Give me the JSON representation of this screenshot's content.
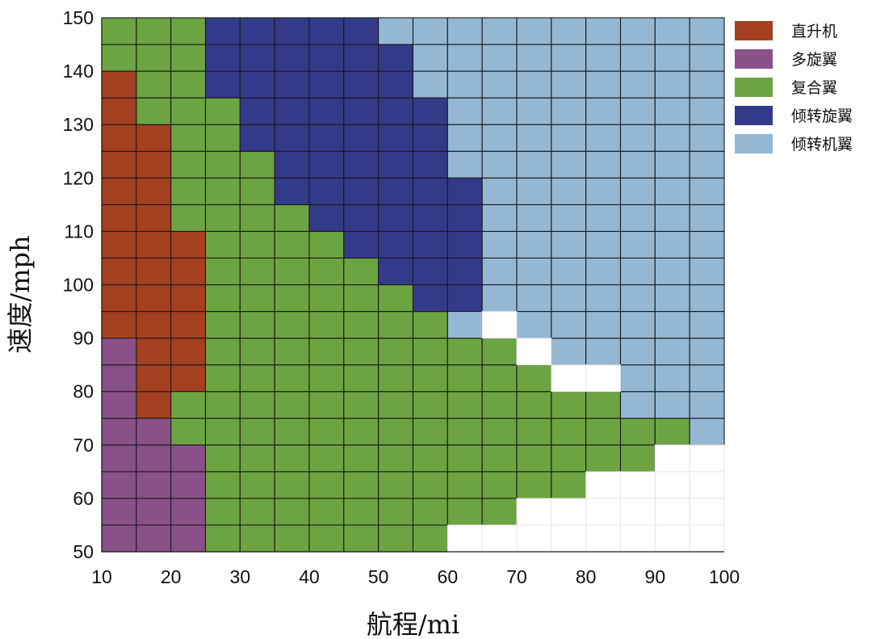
{
  "chart_data": {
    "type": "heatmap",
    "title": "",
    "xlabel": "航程/mi",
    "ylabel": "速度/mph",
    "xlim": [
      10,
      100
    ],
    "ylim": [
      50,
      150
    ],
    "x_step": 5,
    "y_step": 5,
    "x_ticks": [
      10,
      20,
      30,
      40,
      50,
      60,
      70,
      80,
      90,
      100
    ],
    "y_ticks": [
      50,
      60,
      70,
      80,
      90,
      100,
      110,
      120,
      130,
      140,
      150
    ],
    "legend_position": "right",
    "categories": [
      {
        "name": "直升机",
        "color": "#a4401f"
      },
      {
        "name": "多旋翼",
        "color": "#8a5088"
      },
      {
        "name": "复合翼",
        "color": "#6ca441"
      },
      {
        "name": "倾转旋翼",
        "color": "#343a8a"
      },
      {
        "name": "倾转机翼",
        "color": "#94b8d4"
      }
    ],
    "regions": [
      {
        "category": "直升机",
        "columns": [
          {
            "x": [
              10,
              15
            ],
            "y": [
              90,
              140
            ]
          },
          {
            "x": [
              15,
              20
            ],
            "y": [
              75,
              130
            ]
          },
          {
            "x": [
              20,
              25
            ],
            "y": [
              80,
              110
            ]
          }
        ]
      },
      {
        "category": "多旋翼",
        "columns": [
          {
            "x": [
              10,
              15
            ],
            "y": [
              50,
              90
            ]
          },
          {
            "x": [
              15,
              20
            ],
            "y": [
              50,
              75
            ]
          },
          {
            "x": [
              20,
              25
            ],
            "y": [
              50,
              70
            ]
          }
        ]
      },
      {
        "category": "复合翼",
        "columns": [
          {
            "x": [
              10,
              15
            ],
            "y": [
              140,
              150
            ]
          },
          {
            "x": [
              15,
              20
            ],
            "y": [
              130,
              150
            ]
          },
          {
            "x": [
              20,
              25
            ],
            "y": [
              110,
              150
            ]
          },
          {
            "x": [
              20,
              25
            ],
            "y": [
              70,
              80
            ]
          },
          {
            "x": [
              25,
              30
            ],
            "y": [
              50,
              135
            ]
          },
          {
            "x": [
              30,
              35
            ],
            "y": [
              50,
              125
            ]
          },
          {
            "x": [
              35,
              40
            ],
            "y": [
              50,
              115
            ]
          },
          {
            "x": [
              40,
              45
            ],
            "y": [
              50,
              110
            ]
          },
          {
            "x": [
              45,
              50
            ],
            "y": [
              50,
              105
            ]
          },
          {
            "x": [
              50,
              55
            ],
            "y": [
              50,
              100
            ]
          },
          {
            "x": [
              55,
              60
            ],
            "y": [
              50,
              95
            ]
          },
          {
            "x": [
              60,
              65
            ],
            "y": [
              55,
              90
            ]
          },
          {
            "x": [
              65,
              70
            ],
            "y": [
              55,
              90
            ]
          },
          {
            "x": [
              70,
              75
            ],
            "y": [
              60,
              85
            ]
          },
          {
            "x": [
              75,
              80
            ],
            "y": [
              60,
              80
            ]
          },
          {
            "x": [
              80,
              85
            ],
            "y": [
              65,
              80
            ]
          },
          {
            "x": [
              85,
              90
            ],
            "y": [
              65,
              75
            ]
          },
          {
            "x": [
              90,
              95
            ],
            "y": [
              70,
              75
            ]
          }
        ]
      },
      {
        "category": "倾转旋翼",
        "columns": [
          {
            "x": [
              25,
              30
            ],
            "y": [
              135,
              150
            ]
          },
          {
            "x": [
              30,
              35
            ],
            "y": [
              125,
              150
            ]
          },
          {
            "x": [
              35,
              40
            ],
            "y": [
              115,
              150
            ]
          },
          {
            "x": [
              40,
              45
            ],
            "y": [
              110,
              150
            ]
          },
          {
            "x": [
              45,
              50
            ],
            "y": [
              105,
              150
            ]
          },
          {
            "x": [
              50,
              55
            ],
            "y": [
              100,
              145
            ]
          },
          {
            "x": [
              55,
              60
            ],
            "y": [
              95,
              135
            ]
          },
          {
            "x": [
              60,
              65
            ],
            "y": [
              95,
              120
            ]
          }
        ]
      },
      {
        "category": "倾转机翼",
        "columns": [
          {
            "x": [
              50,
              55
            ],
            "y": [
              145,
              150
            ]
          },
          {
            "x": [
              55,
              60
            ],
            "y": [
              135,
              150
            ]
          },
          {
            "x": [
              60,
              65
            ],
            "y": [
              120,
              150
            ]
          },
          {
            "x": [
              60,
              65
            ],
            "y": [
              90,
              95
            ]
          },
          {
            "x": [
              65,
              70
            ],
            "y": [
              95,
              150
            ]
          },
          {
            "x": [
              70,
              75
            ],
            "y": [
              90,
              150
            ]
          },
          {
            "x": [
              75,
              80
            ],
            "y": [
              85,
              150
            ]
          },
          {
            "x": [
              80,
              85
            ],
            "y": [
              85,
              150
            ]
          },
          {
            "x": [
              85,
              90
            ],
            "y": [
              75,
              150
            ]
          },
          {
            "x": [
              90,
              95
            ],
            "y": [
              75,
              150
            ]
          },
          {
            "x": [
              95,
              100
            ],
            "y": [
              70,
              150
            ]
          }
        ]
      }
    ]
  }
}
